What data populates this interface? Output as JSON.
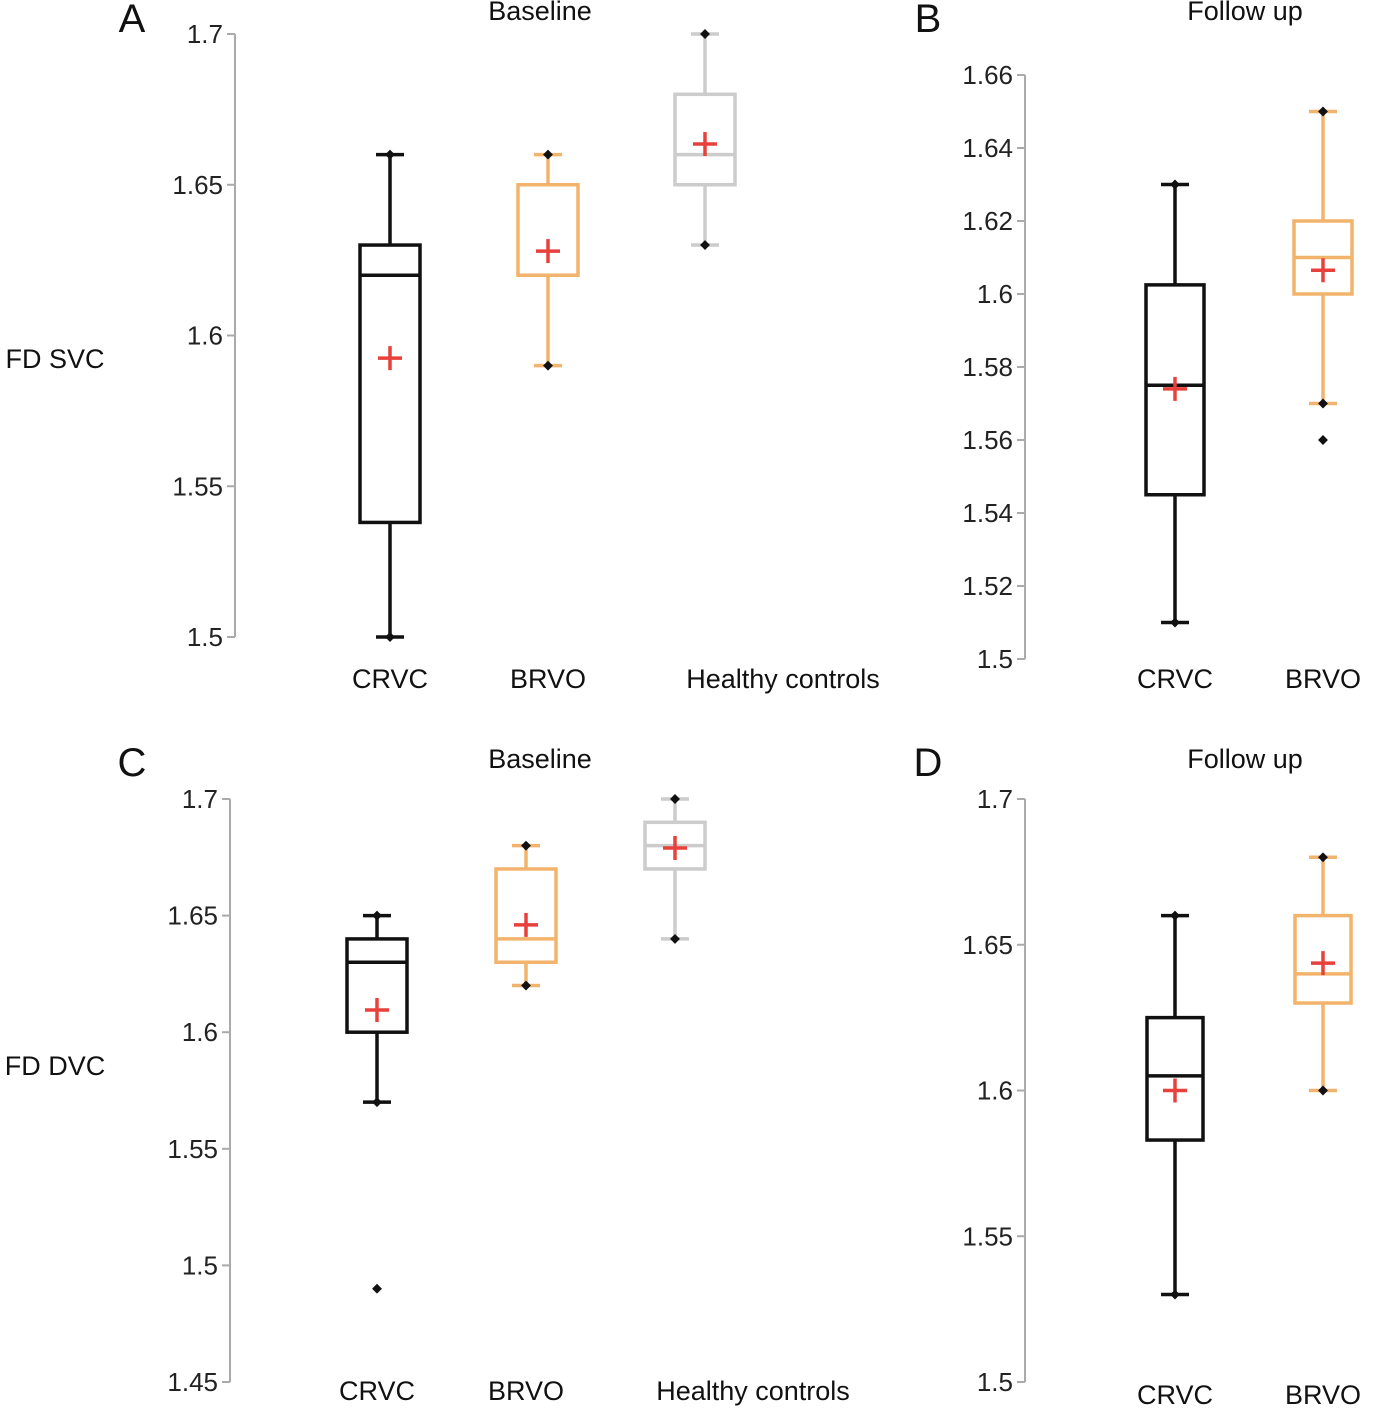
{
  "colors": {
    "CRVC": "#111111",
    "BRVO": "#F2B46C",
    "Healthy controls": "#CCCCCC",
    "mean": "#E8403A",
    "axis": "#AAAAAA"
  },
  "chart_data": [
    {
      "panel": "A",
      "type": "box",
      "title": "Baseline",
      "ylabel": "FD SVC",
      "ylim": [
        1.5,
        1.7
      ],
      "yticks": [
        1.5,
        1.55,
        1.6,
        1.65,
        1.7
      ],
      "categories": [
        "CRVC",
        "BRVO",
        "Healthy controls"
      ],
      "boxes": [
        {
          "min": 1.5,
          "q1": 1.538,
          "median": 1.62,
          "q3": 1.63,
          "max": 1.66,
          "mean": 1.5925,
          "outliers": []
        },
        {
          "min": 1.59,
          "q1": 1.62,
          "median": 1.62,
          "q3": 1.65,
          "max": 1.66,
          "mean": 1.628,
          "outliers": []
        },
        {
          "min": 1.63,
          "q1": 1.65,
          "median": 1.66,
          "q3": 1.68,
          "max": 1.7,
          "mean": 1.6635,
          "outliers": []
        }
      ]
    },
    {
      "panel": "B",
      "type": "box",
      "title": "Follow up",
      "ylabel": "",
      "ylim": [
        1.5,
        1.66
      ],
      "yticks": [
        1.5,
        1.52,
        1.54,
        1.56,
        1.58,
        1.6,
        1.62,
        1.64,
        1.66
      ],
      "categories": [
        "CRVC",
        "BRVO"
      ],
      "boxes": [
        {
          "min": 1.51,
          "q1": 1.545,
          "median": 1.575,
          "q3": 1.6025,
          "max": 1.63,
          "mean": 1.574,
          "outliers": []
        },
        {
          "min": 1.57,
          "q1": 1.6,
          "median": 1.61,
          "q3": 1.62,
          "max": 1.65,
          "mean": 1.6065,
          "outliers": [
            1.56
          ]
        }
      ]
    },
    {
      "panel": "C",
      "type": "box",
      "title": "Baseline",
      "ylabel": "FD DVC",
      "ylim": [
        1.45,
        1.7
      ],
      "yticks": [
        1.45,
        1.5,
        1.55,
        1.6,
        1.65,
        1.7
      ],
      "categories": [
        "CRVC",
        "BRVO",
        "Healthy controls"
      ],
      "boxes": [
        {
          "min": 1.57,
          "q1": 1.6,
          "median": 1.63,
          "q3": 1.64,
          "max": 1.65,
          "mean": 1.6095,
          "outliers": [
            1.49
          ]
        },
        {
          "min": 1.62,
          "q1": 1.63,
          "median": 1.64,
          "q3": 1.67,
          "max": 1.68,
          "mean": 1.646,
          "outliers": []
        },
        {
          "min": 1.64,
          "q1": 1.67,
          "median": 1.68,
          "q3": 1.69,
          "max": 1.7,
          "mean": 1.679,
          "outliers": []
        }
      ]
    },
    {
      "panel": "D",
      "type": "box",
      "title": "Follow up",
      "ylabel": "",
      "ylim": [
        1.5,
        1.7
      ],
      "yticks": [
        1.5,
        1.55,
        1.6,
        1.65,
        1.7
      ],
      "categories": [
        "CRVC",
        "BRVO"
      ],
      "boxes": [
        {
          "min": 1.53,
          "q1": 1.583,
          "median": 1.605,
          "q3": 1.625,
          "max": 1.66,
          "mean": 1.6,
          "outliers": []
        },
        {
          "min": 1.6,
          "q1": 1.63,
          "median": 1.64,
          "q3": 1.66,
          "max": 1.68,
          "mean": 1.6437,
          "outliers": []
        }
      ]
    }
  ]
}
